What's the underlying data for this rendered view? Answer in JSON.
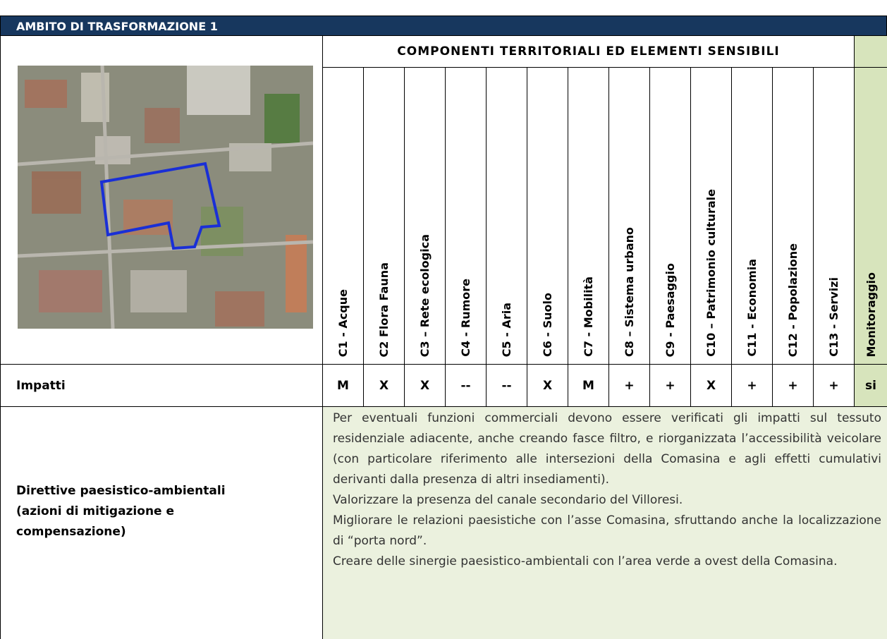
{
  "header": {
    "title": "AMBITO DI TRASFORMAZIONE 1"
  },
  "table": {
    "components_title": "COMPONENTI TERRITORIALI ED ELEMENTI SENSIBILI",
    "columns": [
      "C1 - Acque",
      "C2 Flora Fauna",
      "C3 – Rete ecologica",
      "C4 - Rumore",
      "C5 - Aria",
      "C6 - Suolo",
      "C7 - Mobilità",
      "C8 – Sistema urbano",
      "C9 - Paesaggio",
      "C10 – Patrimonio culturale",
      "C11 - Economia",
      "C12 - Popolazione",
      "C13 - Servizi"
    ],
    "monitoring_label": "Monitoraggio",
    "impacts": {
      "label": "Impatti",
      "values": [
        "M",
        "X",
        "X",
        "--",
        "--",
        "X",
        "M",
        "+",
        "+",
        "X",
        "+",
        "+",
        "+"
      ],
      "monitoring": "si"
    },
    "directives": {
      "label_lines": [
        "Direttive paesistico-ambientali",
        "(azioni di mitigazione e",
        "compensazione)"
      ],
      "paragraphs": [
        "Per eventuali funzioni commerciali devono essere verificati gli impatti sul tessuto residenziale adiacente, anche creando fasce filtro, e riorganizzata l’accessibilità veicolare (con particolare riferimento alle intersezioni della Comasina e agli effetti cumulativi derivanti dalla presenza di altri insediamenti).",
        "Valorizzare la presenza del canale secondario del Villoresi.",
        "Migliorare le relazioni paesistiche con l’asse Comasina, sfruttando anche la localizzazione di “porta nord”.",
        "Creare delle sinergie paesistico-ambientali con l’area verde a ovest della Comasina."
      ]
    }
  }
}
